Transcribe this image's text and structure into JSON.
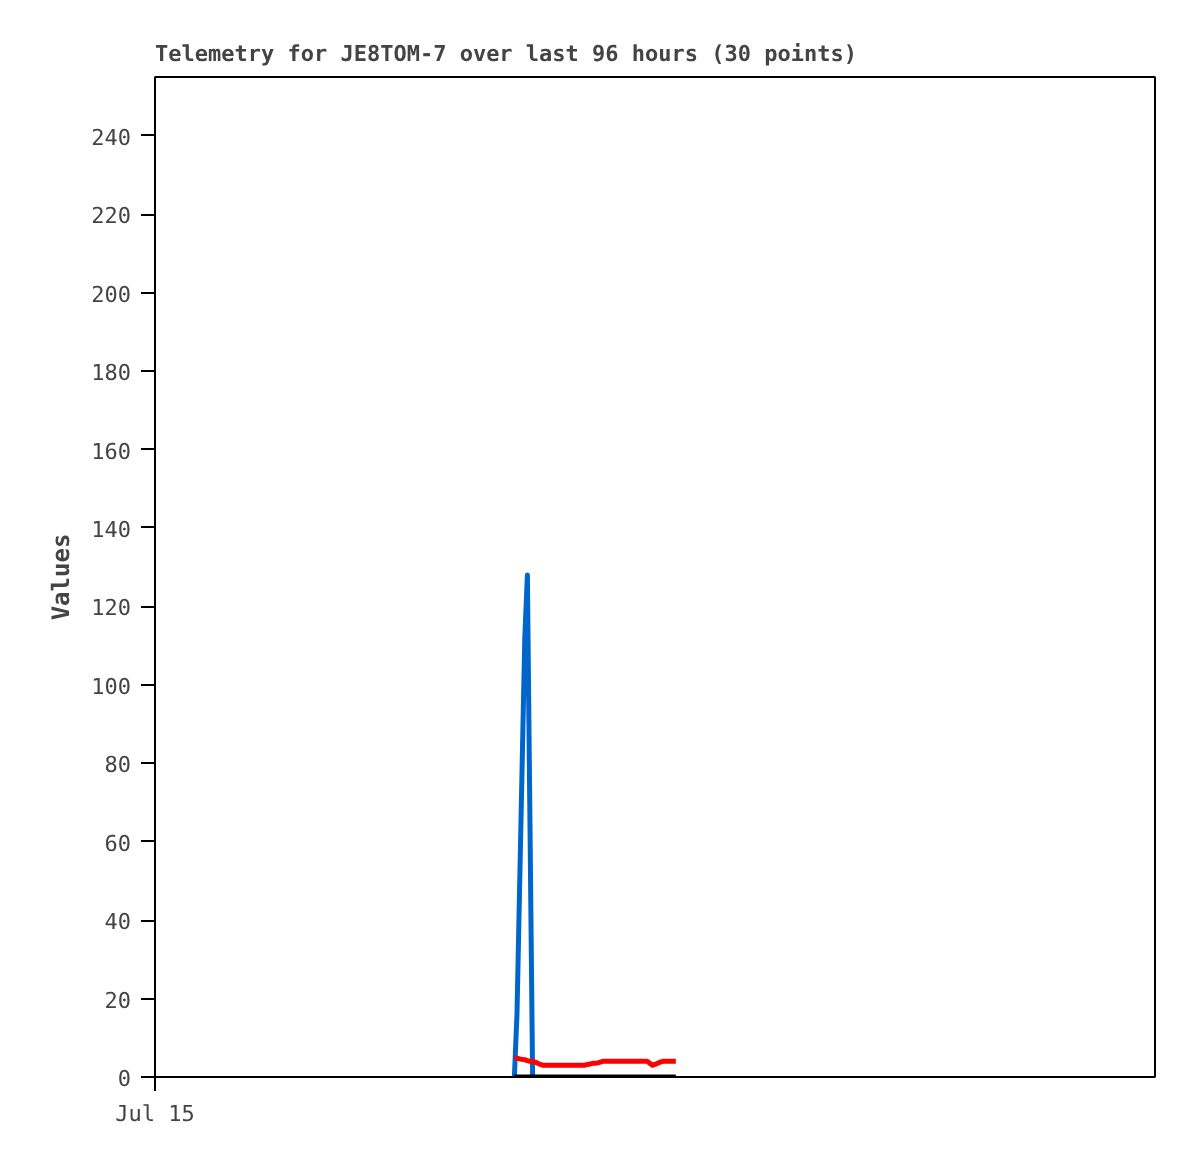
{
  "chart_data": {
    "type": "line",
    "title": "Telemetry for JE8TOM-7 over last 96 hours (30 points)",
    "ylabel": "Values",
    "categories": [
      "Jul 15",
      null,
      null,
      null,
      null,
      null,
      null,
      null,
      null,
      null,
      null,
      null,
      null,
      null,
      null,
      null,
      null,
      null,
      null,
      null,
      null,
      null,
      null,
      null,
      null,
      null,
      null,
      null,
      null,
      null,
      null,
      null,
      null,
      null,
      null,
      null,
      null,
      null,
      null,
      null,
      null,
      null,
      null,
      null,
      null,
      null,
      null,
      null,
      null,
      null,
      null,
      null,
      null,
      null,
      null,
      null,
      null,
      null,
      null,
      null,
      null,
      null,
      null,
      null,
      null,
      null,
      null,
      null,
      null,
      null,
      null,
      null,
      null,
      null,
      null,
      null,
      null,
      null,
      null,
      null,
      null,
      null,
      null,
      null,
      null,
      null,
      null,
      null,
      null,
      null,
      null,
      null,
      null,
      null,
      null,
      null,
      null,
      null,
      null,
      null,
      null,
      null,
      null,
      null,
      null,
      null,
      null,
      null,
      null,
      null,
      null,
      null,
      null,
      null,
      null,
      null,
      null,
      null,
      null,
      null,
      null,
      null,
      null,
      null,
      null,
      null,
      null,
      null,
      null,
      null,
      null,
      null,
      null,
      null,
      null,
      null,
      null,
      null,
      null,
      null,
      null,
      null,
      null,
      null,
      null,
      null,
      null,
      null,
      null,
      null,
      null,
      null,
      null,
      null,
      null,
      null,
      null,
      null,
      null,
      null,
      null,
      null,
      null,
      null,
      null,
      null,
      null,
      null,
      null,
      null,
      null,
      null,
      null,
      null,
      null,
      null,
      null,
      null,
      null,
      null,
      null,
      null,
      null,
      null,
      null,
      null,
      null,
      null,
      null,
      null,
      null,
      null,
      null,
      null,
      null,
      null,
      null,
      null,
      null,
      null,
      null,
      null,
      null,
      null,
      null,
      null,
      null,
      null,
      null,
      null,
      null,
      null,
      null,
      null,
      null,
      null,
      null,
      null,
      null,
      null,
      null,
      null,
      null,
      null,
      null,
      null,
      null,
      null,
      null,
      null,
      null,
      null,
      null,
      null,
      null,
      null,
      null,
      null,
      null,
      null,
      null,
      null,
      null,
      null,
      null,
      null,
      null,
      null,
      null,
      null,
      null,
      null,
      null,
      null,
      null,
      null,
      null,
      null,
      null,
      null,
      null,
      null,
      null,
      null,
      null,
      null,
      null,
      null,
      null,
      null,
      null,
      null,
      null,
      null,
      null,
      null,
      null,
      null,
      null,
      null,
      null,
      null,
      null,
      null,
      null,
      null,
      null,
      null,
      null,
      null,
      null,
      null,
      null,
      null,
      null,
      null,
      null,
      null,
      null,
      null,
      null,
      null,
      null,
      null,
      null,
      null,
      null,
      null,
      null,
      null,
      null,
      null,
      null,
      null,
      null,
      null,
      null,
      null,
      null,
      null,
      null,
      null,
      null,
      null,
      null,
      null,
      null,
      null,
      null,
      null,
      null,
      null,
      null,
      null,
      null,
      null,
      null,
      null,
      null,
      null,
      null,
      null,
      null,
      null,
      null,
      null,
      null,
      null,
      null,
      null,
      null,
      null,
      null,
      null,
      null,
      null,
      null,
      null,
      null,
      null,
      null,
      null,
      null,
      null,
      null,
      null,
      null,
      null,
      null,
      null,
      null,
      null,
      null,
      null,
      null,
      null,
      null,
      null,
      null,
      null,
      null,
      null,
      null,
      null,
      null
    ],
    "ylim": [
      0,
      255
    ],
    "yticks": [
      0,
      20,
      40,
      60,
      80,
      100,
      120,
      140,
      160,
      180,
      200,
      220,
      240
    ],
    "grid": false,
    "marker": "none",
    "line_style": "solid",
    "series": [
      {
        "color": "#0066cc",
        "values": [
          null,
          null,
          null,
          null,
          null,
          null,
          null,
          null,
          null,
          null,
          null,
          null,
          null,
          null,
          null,
          null,
          null,
          null,
          null,
          null,
          null,
          null,
          null,
          null,
          null,
          null,
          null,
          null,
          null,
          null,
          null,
          null,
          null,
          null,
          null,
          null,
          null,
          null,
          null,
          null,
          null,
          null,
          null,
          null,
          null,
          null,
          null,
          null,
          null,
          null,
          null,
          null,
          null,
          null,
          null,
          null,
          null,
          null,
          null,
          null,
          null,
          null,
          null,
          null,
          null,
          null,
          null,
          null,
          null,
          null,
          null,
          null,
          null,
          null,
          null,
          null,
          null,
          null,
          null,
          null,
          null,
          null,
          null,
          null,
          null,
          null,
          null,
          null,
          null,
          null,
          null,
          null,
          null,
          null,
          null,
          null,
          null,
          null,
          null,
          null,
          null,
          null,
          null,
          null,
          null,
          null,
          null,
          null,
          null,
          null,
          null,
          null,
          null,
          null,
          null,
          null,
          null,
          null,
          null,
          null,
          null,
          null,
          null,
          null,
          null,
          null,
          null,
          null,
          null,
          null,
          null,
          null,
          null,
          null,
          null,
          null,
          null,
          null,
          0,
          16,
          48,
          80,
          112,
          128,
          64,
          0,
          null,
          null,
          null,
          null,
          null,
          null,
          null,
          null,
          null,
          null,
          null,
          null,
          null,
          null,
          null,
          null,
          null,
          null,
          null,
          null,
          null,
          null,
          null,
          null,
          null,
          null,
          null,
          null,
          null,
          null,
          null,
          null,
          null,
          null,
          null,
          null,
          null,
          null,
          null,
          null,
          null,
          null,
          null,
          null,
          null,
          null,
          null,
          null,
          null,
          null,
          null,
          null,
          null,
          null,
          null,
          null,
          null,
          null,
          null,
          null,
          null,
          null,
          null,
          null,
          null,
          null,
          null,
          null,
          null,
          null,
          null,
          null,
          null,
          null,
          null,
          null,
          null,
          null,
          null,
          null,
          null,
          null,
          null,
          null,
          null,
          null,
          null,
          null,
          null,
          null,
          null,
          null,
          null,
          null,
          null,
          null,
          null,
          null,
          null,
          null,
          null,
          null,
          null,
          null,
          null,
          null,
          null,
          null,
          null,
          null,
          null,
          null,
          null,
          null,
          null,
          null,
          null,
          null,
          null,
          null,
          null,
          null,
          null,
          null,
          null,
          null,
          null,
          null,
          null,
          null,
          null,
          null,
          null,
          null,
          null,
          null,
          null,
          null,
          null,
          null,
          null,
          null,
          null,
          null,
          null,
          null,
          null,
          null,
          null,
          null,
          null,
          null,
          null,
          null,
          null,
          null,
          null,
          null,
          null,
          null,
          null,
          null,
          null,
          null,
          null,
          null,
          null,
          null,
          null,
          null,
          null,
          null,
          null,
          null,
          null,
          null,
          null,
          null,
          null,
          null,
          null,
          null,
          null,
          null,
          null,
          null,
          null,
          null,
          null,
          null,
          null,
          null,
          null,
          null,
          null,
          null,
          null,
          null,
          null,
          null,
          null,
          null,
          null,
          null,
          null,
          null,
          null,
          null,
          null,
          null,
          null,
          null,
          null,
          null,
          null,
          null,
          null,
          null,
          null,
          null,
          null,
          null,
          null,
          null,
          null,
          null,
          null,
          null,
          null,
          null,
          null,
          null,
          null,
          null,
          null,
          null,
          null,
          null,
          null
        ]
      },
      {
        "color": "#ff0000",
        "values": [
          null,
          null,
          null,
          null,
          null,
          null,
          null,
          null,
          null,
          null,
          null,
          null,
          null,
          null,
          null,
          null,
          null,
          null,
          null,
          null,
          null,
          null,
          null,
          null,
          null,
          null,
          null,
          null,
          null,
          null,
          null,
          null,
          null,
          null,
          null,
          null,
          null,
          null,
          null,
          null,
          null,
          null,
          null,
          null,
          null,
          null,
          null,
          null,
          null,
          null,
          null,
          null,
          null,
          null,
          null,
          null,
          null,
          null,
          null,
          null,
          null,
          null,
          null,
          null,
          null,
          null,
          null,
          null,
          null,
          null,
          null,
          null,
          null,
          null,
          null,
          null,
          null,
          null,
          null,
          null,
          null,
          null,
          null,
          null,
          null,
          null,
          null,
          null,
          null,
          null,
          null,
          null,
          null,
          null,
          null,
          null,
          null,
          null,
          null,
          null,
          null,
          null,
          null,
          null,
          null,
          null,
          null,
          null,
          null,
          null,
          null,
          null,
          null,
          null,
          null,
          null,
          null,
          null,
          null,
          null,
          null,
          null,
          null,
          null,
          null,
          null,
          null,
          null,
          null,
          null,
          null,
          null,
          null,
          null,
          null,
          null,
          null,
          null,
          5,
          4.8,
          4.6,
          4.5,
          4.4,
          4.2,
          4,
          4,
          3.8,
          3.5,
          3.2,
          3,
          3,
          3,
          3,
          3,
          3,
          3,
          3,
          3,
          3,
          3,
          3,
          3,
          3,
          3,
          3,
          3,
          3.2,
          3.3,
          3.5,
          3.5,
          3.6,
          3.8,
          4,
          4,
          4,
          4,
          4,
          4,
          4,
          4,
          4,
          4,
          4,
          4,
          4,
          4,
          4,
          4,
          4,
          4,
          3.5,
          3,
          3.2,
          3.5,
          3.8,
          4,
          4,
          4,
          4,
          4,
          4,
          null,
          null,
          null,
          null,
          null,
          null,
          null,
          null,
          null,
          null,
          null,
          null,
          null,
          null,
          null,
          null,
          null,
          null,
          null,
          null,
          null,
          null,
          null,
          null,
          null,
          null,
          null,
          null,
          null,
          null,
          null,
          null,
          null,
          null,
          null,
          null,
          null,
          null,
          null,
          null,
          null,
          null,
          null,
          null,
          null,
          null,
          null,
          null,
          null,
          null,
          null,
          null,
          null,
          null,
          null,
          null,
          null,
          null,
          null,
          null,
          null,
          null,
          null,
          null,
          null,
          null,
          null,
          null,
          null,
          null,
          null,
          null,
          null,
          null,
          null,
          null,
          null,
          null,
          null,
          null,
          null,
          null,
          null,
          null,
          null,
          null,
          null,
          null,
          null,
          null,
          null,
          null,
          null,
          null,
          null,
          null,
          null,
          null,
          null,
          null,
          null,
          null,
          null,
          null,
          null,
          null,
          null,
          null,
          null,
          null,
          null,
          null,
          null,
          null,
          null,
          null,
          null,
          null,
          null,
          null,
          null,
          null,
          null,
          null,
          null,
          null,
          null,
          null,
          null,
          null,
          null,
          null,
          null,
          null,
          null,
          null,
          null,
          null,
          null,
          null,
          null,
          null,
          null,
          null,
          null,
          null,
          null,
          null,
          null,
          null,
          null,
          null,
          null,
          null,
          null,
          null,
          null,
          null,
          null,
          null,
          null,
          null,
          null,
          null,
          null,
          null,
          null,
          null,
          null,
          null,
          null,
          null,
          null,
          null,
          null,
          null,
          null,
          null,
          null,
          null,
          null,
          null,
          null,
          null
        ]
      },
      {
        "color": "#000000",
        "values": [
          null,
          null,
          null,
          null,
          null,
          null,
          null,
          null,
          null,
          null,
          null,
          null,
          null,
          null,
          null,
          null,
          null,
          null,
          null,
          null,
          null,
          null,
          null,
          null,
          null,
          null,
          null,
          null,
          null,
          null,
          null,
          null,
          null,
          null,
          null,
          null,
          null,
          null,
          null,
          null,
          null,
          null,
          null,
          null,
          null,
          null,
          null,
          null,
          null,
          null,
          null,
          null,
          null,
          null,
          null,
          null,
          null,
          null,
          null,
          null,
          null,
          null,
          null,
          null,
          null,
          null,
          null,
          null,
          null,
          null,
          null,
          null,
          null,
          null,
          null,
          null,
          null,
          null,
          null,
          null,
          null,
          null,
          null,
          null,
          null,
          null,
          null,
          null,
          null,
          null,
          null,
          null,
          null,
          null,
          null,
          null,
          null,
          null,
          null,
          null,
          null,
          null,
          null,
          null,
          null,
          null,
          null,
          null,
          null,
          null,
          null,
          null,
          null,
          null,
          null,
          null,
          null,
          null,
          null,
          null,
          null,
          null,
          null,
          null,
          null,
          null,
          null,
          null,
          null,
          null,
          null,
          null,
          null,
          null,
          null,
          null,
          null,
          null,
          0,
          0,
          0,
          0,
          0,
          0,
          0,
          0,
          0,
          0,
          0,
          0,
          0,
          0,
          0,
          0,
          0,
          0,
          0,
          0,
          0,
          0,
          0,
          0,
          0,
          0,
          0,
          0,
          0,
          0,
          0,
          0,
          0,
          0,
          0,
          0,
          0,
          0,
          0,
          0,
          0,
          0,
          0,
          0,
          0,
          0,
          0,
          0,
          0,
          0,
          0,
          0,
          0,
          0,
          0,
          0,
          0,
          0,
          0,
          0,
          0,
          0,
          0,
          null,
          null,
          null,
          null,
          null,
          null,
          null,
          null,
          null,
          null,
          null,
          null,
          null,
          null,
          null,
          null,
          null,
          null,
          null,
          null,
          null,
          null,
          null,
          null,
          null,
          null,
          null,
          null,
          null,
          null,
          null,
          null,
          null,
          null,
          null,
          null,
          null,
          null,
          null,
          null,
          null,
          null,
          null,
          null,
          null,
          null,
          null,
          null,
          null,
          null,
          null,
          null,
          null,
          null,
          null,
          null,
          null,
          null,
          null,
          null,
          null,
          null,
          null,
          null,
          null,
          null,
          null,
          null,
          null,
          null,
          null,
          null,
          null,
          null,
          null,
          null,
          null,
          null,
          null,
          null,
          null,
          null,
          null,
          null,
          null,
          null,
          null,
          null,
          null,
          null,
          null,
          null,
          null,
          null,
          null,
          null,
          null,
          null,
          null,
          null,
          null,
          null,
          null,
          null,
          null,
          null,
          null,
          null,
          null,
          null,
          null,
          null,
          null,
          null,
          null,
          null,
          null,
          null,
          null,
          null,
          null,
          null,
          null,
          null,
          null,
          null,
          null,
          null,
          null,
          null,
          null,
          null,
          null,
          null,
          null,
          null,
          null,
          null,
          null,
          null,
          null,
          null,
          null,
          null,
          null,
          null,
          null,
          null,
          null,
          null,
          null,
          null,
          null,
          null,
          null,
          null,
          null,
          null,
          null,
          null,
          null,
          null,
          null,
          null,
          null,
          null,
          null,
          null,
          null,
          null,
          null,
          null,
          null,
          null,
          null,
          null,
          null,
          null,
          null,
          null,
          null,
          null,
          null,
          null
        ]
      }
    ]
  }
}
